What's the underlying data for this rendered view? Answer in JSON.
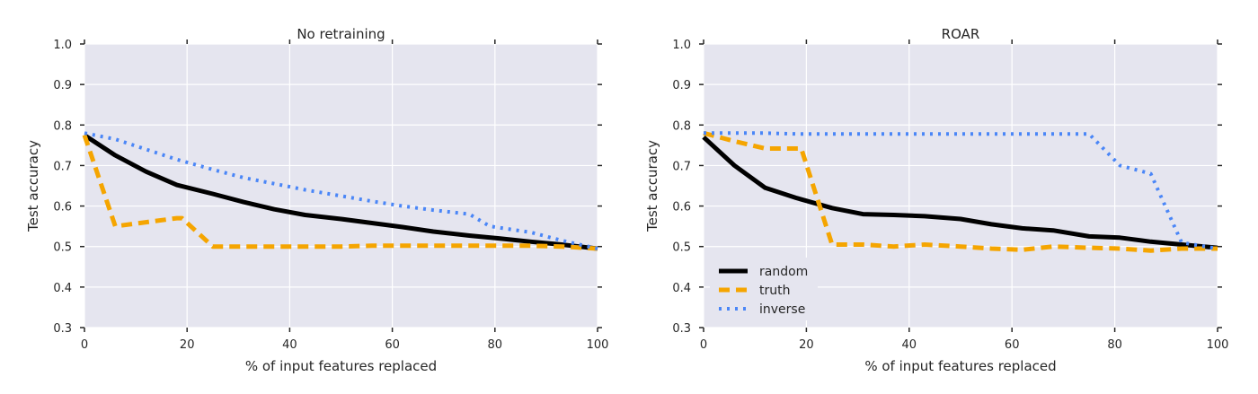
{
  "chart_data": [
    {
      "type": "line",
      "title": "No retraining",
      "xlabel": "% of input features replaced",
      "ylabel": "Test accuracy",
      "xlim": [
        0,
        100
      ],
      "ylim": [
        0.3,
        1.0
      ],
      "xticks": [
        "0",
        "20",
        "40",
        "60",
        "80",
        "100"
      ],
      "yticks": [
        "0.3",
        "0.4",
        "0.5",
        "0.6",
        "0.7",
        "0.8",
        "0.9",
        "1.0"
      ],
      "grid": true,
      "legend": null,
      "series": [
        {
          "name": "random",
          "color": "#000000",
          "style": "solid",
          "x": [
            0,
            6,
            12,
            18,
            25,
            31,
            37,
            43,
            50,
            56,
            62,
            68,
            75,
            81,
            87,
            93,
            100
          ],
          "y": [
            0.775,
            0.725,
            0.685,
            0.652,
            0.63,
            0.61,
            0.592,
            0.578,
            0.568,
            0.558,
            0.548,
            0.537,
            0.527,
            0.52,
            0.512,
            0.505,
            0.495
          ]
        },
        {
          "name": "truth",
          "color": "#f5a500",
          "style": "dashed",
          "x": [
            0,
            6,
            12,
            18,
            19,
            25,
            31,
            37,
            43,
            50,
            56,
            62,
            68,
            75,
            81,
            87,
            93,
            100
          ],
          "y": [
            0.775,
            0.55,
            0.56,
            0.57,
            0.57,
            0.5,
            0.5,
            0.5,
            0.5,
            0.5,
            0.502,
            0.502,
            0.502,
            0.502,
            0.502,
            0.502,
            0.5,
            0.495
          ]
        },
        {
          "name": "inverse",
          "color": "#4a86f7",
          "style": "dotted",
          "x": [
            0,
            6,
            12,
            18,
            25,
            31,
            37,
            43,
            50,
            56,
            62,
            68,
            75,
            79,
            87,
            93,
            100
          ],
          "y": [
            0.78,
            0.765,
            0.74,
            0.715,
            0.69,
            0.67,
            0.655,
            0.64,
            0.625,
            0.612,
            0.6,
            0.59,
            0.58,
            0.55,
            0.535,
            0.515,
            0.495
          ]
        }
      ]
    },
    {
      "type": "line",
      "title": "ROAR",
      "xlabel": "% of input features replaced",
      "ylabel": "Test accuracy",
      "xlim": [
        0,
        100
      ],
      "ylim": [
        0.3,
        1.0
      ],
      "xticks": [
        "0",
        "20",
        "40",
        "60",
        "80",
        "100"
      ],
      "yticks": [
        "0.3",
        "0.4",
        "0.5",
        "0.6",
        "0.7",
        "0.8",
        "0.9",
        "1.0"
      ],
      "grid": true,
      "legend": "lower-left",
      "series": [
        {
          "name": "random",
          "color": "#000000",
          "style": "solid",
          "x": [
            0,
            6,
            12,
            18,
            25,
            31,
            37,
            43,
            50,
            56,
            62,
            68,
            75,
            81,
            87,
            93,
            100
          ],
          "y": [
            0.77,
            0.7,
            0.645,
            0.62,
            0.595,
            0.58,
            0.578,
            0.575,
            0.568,
            0.555,
            0.545,
            0.54,
            0.525,
            0.522,
            0.512,
            0.505,
            0.497
          ]
        },
        {
          "name": "truth",
          "color": "#f5a500",
          "style": "dashed",
          "x": [
            0,
            6,
            12,
            19,
            25,
            31,
            37,
            43,
            50,
            56,
            62,
            68,
            75,
            81,
            87,
            93,
            100
          ],
          "y": [
            0.78,
            0.76,
            0.742,
            0.742,
            0.505,
            0.505,
            0.5,
            0.505,
            0.5,
            0.495,
            0.492,
            0.5,
            0.497,
            0.495,
            0.49,
            0.495,
            0.495
          ]
        },
        {
          "name": "inverse",
          "color": "#4a86f7",
          "style": "dotted",
          "x": [
            0,
            6,
            12,
            18,
            25,
            31,
            37,
            43,
            50,
            56,
            62,
            68,
            75,
            81,
            87,
            93,
            100
          ],
          "y": [
            0.78,
            0.78,
            0.78,
            0.778,
            0.778,
            0.778,
            0.778,
            0.778,
            0.778,
            0.778,
            0.778,
            0.778,
            0.778,
            0.7,
            0.68,
            0.51,
            0.495
          ]
        }
      ]
    }
  ]
}
